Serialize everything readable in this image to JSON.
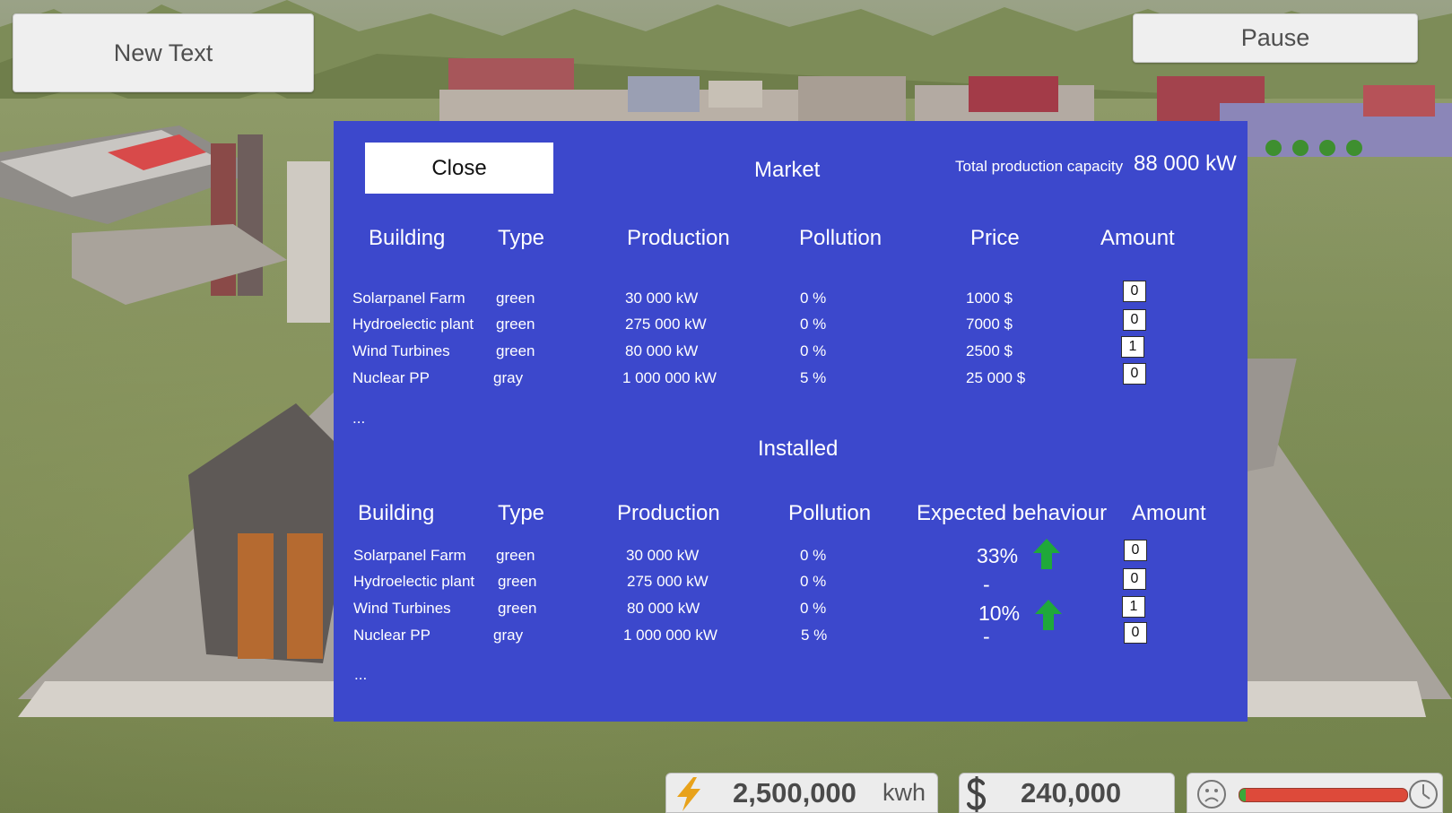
{
  "top": {
    "left_button_label": "New Text",
    "pause_button_label": "Pause"
  },
  "panel": {
    "close_label": "Close",
    "market_title": "Market",
    "capacity_label": "Total production capacity",
    "capacity_value": "88 000 kW",
    "market_headers": [
      "Building",
      "Type",
      "Production",
      "Pollution",
      "Price",
      "Amount"
    ],
    "market_rows": [
      {
        "building": "Solarpanel Farm",
        "type": "green",
        "production": "30 000 kW",
        "pollution": "0 %",
        "price": "1000 $",
        "amount": "0"
      },
      {
        "building": "Hydroelectic plant",
        "type": "green",
        "production": "275 000 kW",
        "pollution": "0 %",
        "price": "7000 $",
        "amount": "0"
      },
      {
        "building": "Wind Turbines",
        "type": "green",
        "production": "80 000 kW",
        "pollution": "0 %",
        "price": "2500 $",
        "amount": "1"
      },
      {
        "building": "Nuclear PP",
        "type": "gray",
        "production": "1 000 000 kW",
        "pollution": "5 %",
        "price": "25 000 $",
        "amount": "0"
      }
    ],
    "market_more": "...",
    "installed_title": "Installed",
    "installed_headers": [
      "Building",
      "Type",
      "Production",
      "Pollution",
      "Expected behaviour",
      "Amount"
    ],
    "installed_rows": [
      {
        "building": "Solarpanel Farm",
        "type": "green",
        "production": "30 000 kW",
        "pollution": "0 %",
        "behaviour": "33%",
        "trend": "arrow-up-icon",
        "amount": "0"
      },
      {
        "building": "Hydroelectic plant",
        "type": "green",
        "production": "275 000 kW",
        "pollution": "0 %",
        "behaviour": "-",
        "trend": "",
        "amount": "0"
      },
      {
        "building": "Wind Turbines",
        "type": "green",
        "production": "80 000 kW",
        "pollution": "0 %",
        "behaviour": "10%",
        "trend": "arrow-up-icon",
        "amount": "1"
      },
      {
        "building": "Nuclear PP",
        "type": "gray",
        "production": "1 000 000 kW",
        "pollution": "5 %",
        "behaviour": "-",
        "trend": "",
        "amount": "0"
      }
    ],
    "installed_more": "...",
    "colors": {
      "panel_bg": "#3c48cc",
      "trend_up": "#1fa83a"
    }
  },
  "hud": {
    "energy_icon": "lightning-bolt-icon",
    "energy_value": "2,500,000",
    "energy_unit": "kwh",
    "money_icon": "currency-s-icon",
    "money_value": "240,000",
    "mood_icon_left": "sad-face-icon",
    "mood_icon_right": "power-clock-icon",
    "mood_level": 0.04,
    "colors": {
      "mood_good": "#3aa83a",
      "mood_bad": "#dd4a3a"
    }
  }
}
